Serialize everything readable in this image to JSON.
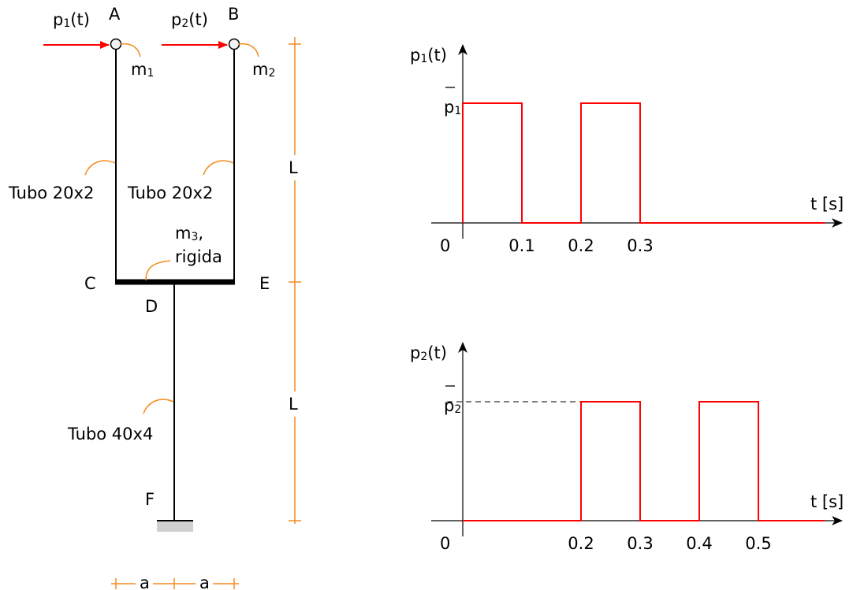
{
  "colors": {
    "load": "#ff0000",
    "dimension": "#f28c1e",
    "structure": "#000000",
    "ground": "#d0d0d0"
  },
  "structure": {
    "loads": [
      {
        "name": "p",
        "sub": "1",
        "suffix": "(t)"
      },
      {
        "name": "p",
        "sub": "2",
        "suffix": "(t)"
      }
    ],
    "nodes": {
      "A": "A",
      "B": "B",
      "C": "C",
      "D": "D",
      "E": "E",
      "F": "F"
    },
    "masses": [
      {
        "name": "m",
        "sub": "1",
        "suffix": ""
      },
      {
        "name": "m",
        "sub": "2",
        "suffix": ""
      },
      {
        "name": "m",
        "sub": "3",
        "suffix": ","
      }
    ],
    "beam_note": "rigida",
    "sections": {
      "left": "Tubo 20x2",
      "right": "Tubo 20x2",
      "bottom": "Tubo 40x4"
    },
    "dims": {
      "upper": "L",
      "lower": "L",
      "a_left": "a",
      "a_right": "a"
    }
  },
  "chart_data": [
    {
      "type": "line",
      "ylabel": {
        "name": "p",
        "sub": "1",
        "suffix": "(t)"
      },
      "xlabel": "t [s]",
      "amplitude": {
        "name": "p",
        "sub": "1"
      },
      "origin": "0",
      "xticks": [
        "0.1",
        "0.2",
        "0.3"
      ],
      "pulses": [
        [
          0,
          0.1
        ],
        [
          0.2,
          0.3
        ]
      ],
      "xlim": [
        0,
        0.6
      ]
    },
    {
      "type": "line",
      "ylabel": {
        "name": "p",
        "sub": "2",
        "suffix": "(t)"
      },
      "xlabel": "t [s]",
      "amplitude": {
        "name": "p",
        "sub": "2"
      },
      "origin": "0",
      "xticks": [
        "0.2",
        "0.3",
        "0.4",
        "0.5"
      ],
      "pulses": [
        [
          0.2,
          0.3
        ],
        [
          0.4,
          0.5
        ]
      ],
      "xlim": [
        0,
        0.6
      ]
    }
  ]
}
